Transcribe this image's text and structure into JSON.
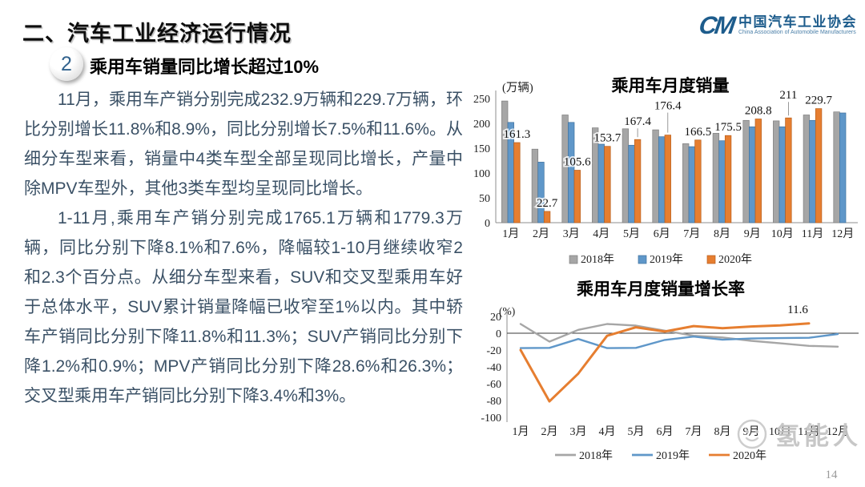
{
  "slide": {
    "title": "二、汽车工业经济运行情况",
    "badge_number": "2",
    "subtitle": "乘用车销量同比增长超过10%",
    "paragraphs": [
      "11月，乘用车产销分别完成232.9万辆和229.7万辆，环比分别增长11.8%和8.9%，同比分别增长7.5%和11.6%。从细分车型来看，销量中4类车型全部呈现同比增长，产量中除MPV车型外，其他3类车型均呈现同比增长。",
      "1-11月,乘用车产销分别完成1765.1万辆和1779.3万辆，同比分别下降8.1%和7.6%，降幅较1-10月继续收窄2和2.3个百分点。从细分车型来看，SUV和交叉型乘用车好于总体水平，SUV累计销量降幅已收窄至1%以内。其中轿车产销同比分别下降11.8%和11.3%；SUV产销同比分别下降1.2%和0.9%；MPV产销同比分别下降28.6%和26.3%；交叉型乘用车产销同比分别下降3.4%和3%。"
    ],
    "logo": {
      "monogram": "CM",
      "name_cn": "中国汽车工业协会",
      "name_en": "China Association of Automobile Manufacturers",
      "brand_color": "#1d5c8c"
    },
    "watermark": "氢能人",
    "page_number": "14"
  },
  "chart_data": [
    {
      "type": "bar",
      "title": "乘用车月度销量",
      "unit_label": "(万辆)",
      "categories": [
        "1月",
        "2月",
        "3月",
        "4月",
        "5月",
        "6月",
        "7月",
        "8月",
        "9月",
        "10月",
        "11月",
        "12月"
      ],
      "series": [
        {
          "name": "2018年",
          "color": "#a6a6a6",
          "stroke": "#7f7f7f",
          "values": [
            245,
            148,
            217,
            191,
            189,
            187,
            159,
            180,
            206,
            205,
            217,
            223
          ]
        },
        {
          "name": "2019年",
          "color": "#5f97c9",
          "stroke": "#41729e",
          "values": [
            202,
            122,
            202,
            158,
            156,
            173,
            153,
            165,
            193,
            193,
            206,
            221
          ]
        },
        {
          "name": "2020年",
          "color": "#e67e30",
          "stroke": "#b85f1d",
          "values": [
            161.3,
            22.7,
            105.6,
            153.7,
            167.4,
            176.4,
            166.5,
            175.5,
            208.8,
            211,
            229.7,
            null
          ],
          "labels": [
            "161.3",
            "22.7",
            "105.6",
            "153.7",
            "167.4",
            "176.4",
            "166.5",
            "175.5",
            "208.8",
            "211",
            "229.7",
            ""
          ]
        }
      ],
      "ylim": [
        0,
        250
      ],
      "yticks": [
        0,
        50,
        100,
        150,
        200,
        250
      ],
      "grid": false,
      "legend_position": "bottom"
    },
    {
      "type": "line",
      "title": "乘用车月度销量增长率",
      "unit_label": "(%)",
      "categories": [
        "1月",
        "2月",
        "3月",
        "4月",
        "5月",
        "6月",
        "7月",
        "8月",
        "9月",
        "10月",
        "11月",
        "12月"
      ],
      "series": [
        {
          "name": "2018年",
          "color": "#a6a6a6",
          "values": [
            11,
            -10,
            4,
            11,
            9,
            3,
            -3,
            -5,
            -9,
            -12,
            -15,
            -16
          ]
        },
        {
          "name": "2019年",
          "color": "#5f97c9",
          "values": [
            -17.7,
            -17.4,
            -6.9,
            -17.7,
            -17.4,
            -8,
            -4,
            -7.7,
            -6.3,
            -5.8,
            -5.4,
            -1
          ]
        },
        {
          "name": "2020年",
          "color": "#e67e30",
          "values": [
            -20,
            -81,
            -48,
            -3,
            7,
            2,
            8.5,
            6,
            8,
            9.3,
            11.6,
            null
          ]
        }
      ],
      "annotation": {
        "text": "11.6",
        "series": "2020年",
        "month_index": 10
      },
      "ylim": [
        -100,
        20
      ],
      "yticks": [
        20,
        0,
        -20,
        -40,
        -60,
        -80,
        -100
      ],
      "grid": false,
      "legend_position": "bottom"
    }
  ]
}
